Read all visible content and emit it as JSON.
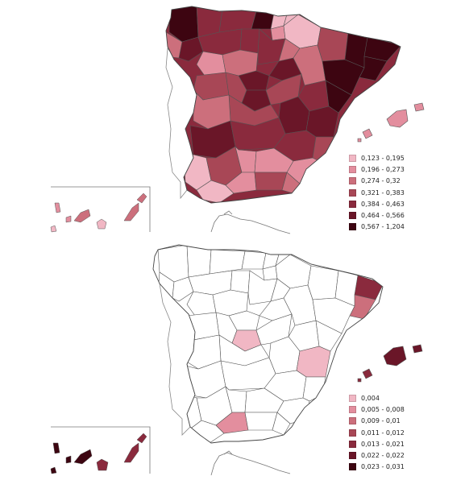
{
  "colors": {
    "c1": "#f1b7c4",
    "c2": "#e38e9e",
    "c3": "#cc6f7c",
    "c4": "#a84756",
    "c5": "#8a2a3d",
    "c6": "#6a1628",
    "c7": "#3d0511",
    "empty": "#ffffff",
    "stroke": "#555555"
  },
  "legend_top": [
    {
      "label": "0,123 - 0,195",
      "color": "#f1b7c4"
    },
    {
      "label": "0,196 - 0,273",
      "color": "#e38e9e"
    },
    {
      "label": "0,274 - 0,32",
      "color": "#cc6f7c"
    },
    {
      "label": "0,321 - 0,383",
      "color": "#a84756"
    },
    {
      "label": "0,384 - 0,463",
      "color": "#8a2a3d"
    },
    {
      "label": "0,464 - 0,566",
      "color": "#6a1628"
    },
    {
      "label": "0,567 - 1,204",
      "color": "#3d0511"
    }
  ],
  "legend_bottom": [
    {
      "label": "0,004",
      "color": "#f1b7c4"
    },
    {
      "label": "0,005 - 0,008",
      "color": "#e38e9e"
    },
    {
      "label": "0,009 - 0,01",
      "color": "#cc6f7c"
    },
    {
      "label": "0,011 - 0,012",
      "color": "#a84756"
    },
    {
      "label": "0,013 - 0,021",
      "color": "#8a2a3d"
    },
    {
      "label": "0,022 - 0,022",
      "color": "#6a1628"
    },
    {
      "label": "0,023 - 0,031",
      "color": "#3d0511"
    }
  ]
}
